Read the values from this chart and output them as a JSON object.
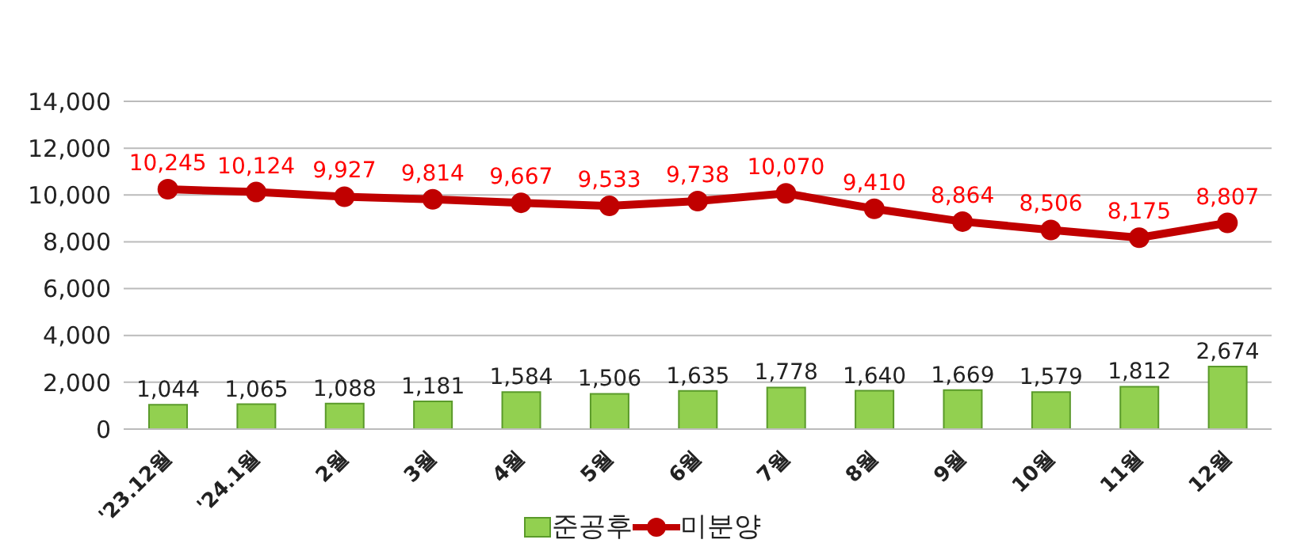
{
  "chart_data": {
    "type": "bar",
    "categories": [
      "'23.12월",
      "'24.1월",
      "2월",
      "3월",
      "4월",
      "5월",
      "6월",
      "7월",
      "8월",
      "9월",
      "10월",
      "11월",
      "12월"
    ],
    "series": [
      {
        "name": "준공후",
        "color": "#92d050",
        "values": [
          1044,
          1065,
          1088,
          1181,
          1584,
          1506,
          1635,
          1778,
          1640,
          1669,
          1579,
          1812,
          2674
        ],
        "value_labels": [
          "1,044",
          "1,065",
          "1,088",
          "1,181",
          "1,584",
          "1,506",
          "1,635",
          "1,778",
          "1,640",
          "1,669",
          "1,579",
          "1,812",
          "2,674"
        ]
      },
      {
        "name": "미분양",
        "type": "line",
        "color": "#c00000",
        "values": [
          10245,
          10124,
          9927,
          9814,
          9667,
          9533,
          9738,
          10070,
          9410,
          8864,
          8506,
          8175,
          8807
        ],
        "value_labels": [
          "10,245",
          "10,124",
          "9,927",
          "9,814",
          "9,667",
          "9,533",
          "9,738",
          "10,070",
          "9,410",
          "8,864",
          "8,506",
          "8,175",
          "8,807"
        ]
      }
    ],
    "ylim": [
      0,
      14000
    ],
    "yticks": [
      0,
      {
        "value": 2000,
        "label": "2,000"
      },
      {
        "value": 4000,
        "label": "4,000"
      },
      {
        "value": 6000,
        "label": "6,000"
      },
      {
        "value": 8000,
        "label": "8,000"
      },
      {
        "value": 10000,
        "label": "10,000"
      },
      {
        "value": 12000,
        "label": "12,000"
      },
      {
        "value": 14000,
        "label": "14,000"
      }
    ],
    "grid": "y",
    "legend": "bottom",
    "marker": "circle"
  }
}
